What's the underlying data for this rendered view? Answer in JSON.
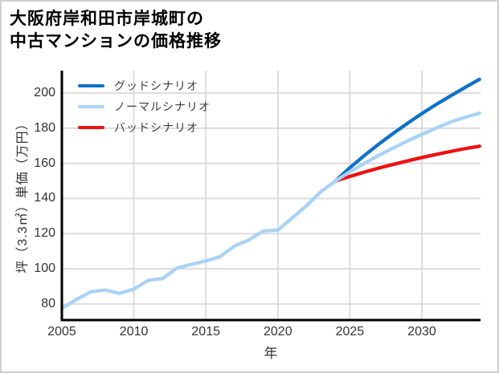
{
  "title": {
    "line1": "大阪府岸和田市岸城町の",
    "line2": "中古マンションの価格推移"
  },
  "colors": {
    "good": "#0d72c9",
    "normal": "#a9d2f6",
    "bad": "#ee1111",
    "grid": "#d9d9d9",
    "axis": "#000000",
    "tick_text": "#333333",
    "legend_text": "#3d3d3d",
    "background": "#ffffff"
  },
  "chart_data": {
    "type": "line",
    "title": "大阪府岸和田市岸城町の中古マンションの価格推移",
    "xlabel": "年",
    "ylabel": "坪（3.3㎡）単価（万円）",
    "xlim": [
      2005,
      2034.1
    ],
    "ylim": [
      71,
      212.5
    ],
    "xticks": [
      2005,
      2010,
      2015,
      2020,
      2025,
      2030
    ],
    "yticks": [
      80,
      100,
      120,
      140,
      160,
      180,
      200
    ],
    "grid": true,
    "legend": {
      "position": "upper-left",
      "entries": [
        "グッドシナリオ",
        "ノーマルシナリオ",
        "バッドシナリオ"
      ]
    },
    "series": [
      {
        "name": "グッドシナリオ",
        "color_key": "good",
        "x": [
          2024,
          2025,
          2026,
          2027,
          2028,
          2029,
          2030,
          2031,
          2032,
          2033,
          2034
        ],
        "values": [
          150,
          157.5,
          164.4,
          170.9,
          177,
          182.8,
          188.3,
          193.5,
          198.4,
          203.2,
          207.8
        ]
      },
      {
        "name": "ノーマルシナリオ",
        "color_key": "normal",
        "x": [
          2005,
          2006,
          2007,
          2008,
          2009,
          2010,
          2011,
          2012,
          2013,
          2014,
          2015,
          2016,
          2017,
          2018,
          2019,
          2020,
          2021,
          2022,
          2023,
          2024,
          2025,
          2026,
          2027,
          2028,
          2029,
          2030,
          2031,
          2032,
          2033,
          2034
        ],
        "values": [
          77.5,
          82.5,
          87,
          88,
          86,
          88.5,
          93.5,
          94.5,
          100.5,
          102.5,
          104.5,
          107,
          113,
          116.5,
          121.5,
          122,
          129,
          136,
          144,
          150,
          155.2,
          160,
          164.5,
          168.7,
          172.7,
          176.5,
          180.1,
          183.5,
          186.2,
          188.5
        ]
      },
      {
        "name": "バッドシナリオ",
        "color_key": "bad",
        "x": [
          2024,
          2025,
          2026,
          2027,
          2028,
          2029,
          2030,
          2031,
          2032,
          2033,
          2034
        ],
        "values": [
          150,
          152.6,
          155,
          157.3,
          159.4,
          161.4,
          163.3,
          165.1,
          166.8,
          168.4,
          169.8
        ]
      }
    ]
  }
}
